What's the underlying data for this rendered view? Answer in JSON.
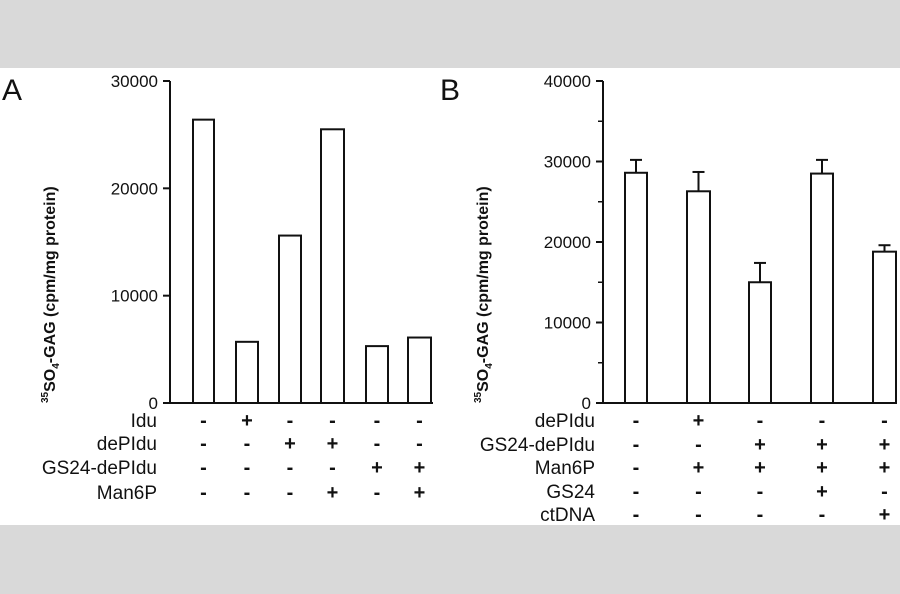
{
  "colors": {
    "background_band": "#d9d9d9",
    "figure_bg": "#ffffff",
    "ink": "#111111",
    "bar_fill": "#ffffff"
  },
  "chart_data": [
    {
      "panel": "A",
      "type": "bar",
      "ylabel_isotope": "35",
      "ylabel_main": "SO",
      "ylabel_sub": "4",
      "ylabel_rest": "-GAG (cpm/mg protein)",
      "ylim": [
        0,
        30000
      ],
      "yticks": [
        "0",
        "10000",
        "20000",
        "30000"
      ],
      "ytick_values": [
        0,
        10000,
        20000,
        30000
      ],
      "grid": false,
      "values": [
        26400,
        5700,
        15600,
        25500,
        5300,
        6100
      ],
      "error_bars": null,
      "conditions": [
        {
          "label": "Idu",
          "signs": [
            "-",
            "+",
            "-",
            "-",
            "-",
            "-"
          ]
        },
        {
          "label": "dePIdu",
          "signs": [
            "-",
            "-",
            "+",
            "+",
            "-",
            "-"
          ]
        },
        {
          "label": "GS24-dePIdu",
          "signs": [
            "-",
            "-",
            "-",
            "-",
            "+",
            "+"
          ]
        },
        {
          "label": "Man6P",
          "signs": [
            "-",
            "-",
            "-",
            "+",
            "-",
            "+"
          ]
        }
      ]
    },
    {
      "panel": "B",
      "type": "bar",
      "ylabel_isotope": "35",
      "ylabel_main": "SO",
      "ylabel_sub": "4",
      "ylabel_rest": "-GAG (cpm/mg protein)",
      "ylim": [
        0,
        40000
      ],
      "yticks": [
        "0",
        "10000",
        "20000",
        "30000",
        "40000"
      ],
      "ytick_values": [
        0,
        10000,
        20000,
        30000,
        40000
      ],
      "minor_tick_step": 5000,
      "grid": false,
      "values": [
        28600,
        26300,
        15000,
        28500,
        18800
      ],
      "error_upper": [
        30200,
        28700,
        17400,
        30200,
        19600
      ],
      "conditions": [
        {
          "label": "dePIdu",
          "signs": [
            "-",
            "+",
            "-",
            "-",
            "-"
          ]
        },
        {
          "label": "GS24-dePIdu",
          "signs": [
            "-",
            "-",
            "+",
            "+",
            "+"
          ]
        },
        {
          "label": "Man6P",
          "signs": [
            "-",
            "+",
            "+",
            "+",
            "+"
          ]
        },
        {
          "label": "GS24",
          "signs": [
            "-",
            "-",
            "-",
            "+",
            "-"
          ]
        },
        {
          "label": "ctDNA",
          "signs": [
            "-",
            "-",
            "-",
            "-",
            "+"
          ]
        }
      ]
    }
  ]
}
